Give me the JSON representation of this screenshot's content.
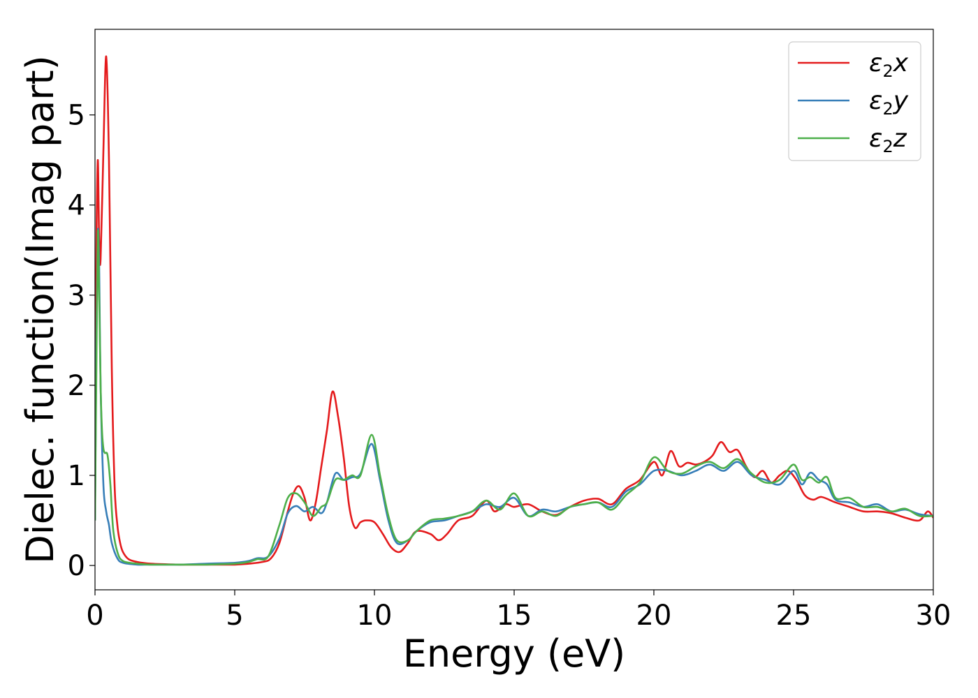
{
  "chart_data": {
    "type": "line",
    "title": "",
    "xlabel": "Energy (eV)",
    "ylabel": "Dielec. function(Imag part)",
    "xlim": [
      0,
      30
    ],
    "ylim": [
      -0.27,
      5.95
    ],
    "xticks": [
      0,
      5,
      10,
      15,
      20,
      25,
      30
    ],
    "yticks": [
      0,
      1,
      2,
      3,
      4,
      5
    ],
    "grid": false,
    "legend_position": "top-right",
    "series": [
      {
        "name": "ε2x",
        "legend_main": "ε",
        "legend_sub": "2",
        "legend_suffix": "x",
        "color": "#e41a1c",
        "x": [
          0,
          0.05,
          0.1,
          0.15,
          0.2,
          0.3,
          0.4,
          0.5,
          0.6,
          0.7,
          0.8,
          0.9,
          1.0,
          1.2,
          1.5,
          2,
          3,
          4,
          5,
          5.5,
          6,
          6.3,
          6.6,
          6.9,
          7.1,
          7.3,
          7.5,
          7.7,
          7.9,
          8.1,
          8.3,
          8.5,
          8.7,
          8.9,
          9.1,
          9.3,
          9.5,
          9.7,
          10.0,
          10.3,
          10.6,
          10.9,
          11.2,
          11.5,
          12.0,
          12.3,
          12.6,
          13.0,
          13.5,
          14.0,
          14.3,
          14.7,
          15.0,
          15.5,
          16.0,
          16.5,
          17.0,
          17.5,
          18.0,
          18.5,
          19.0,
          19.5,
          20.0,
          20.3,
          20.6,
          20.9,
          21.2,
          21.5,
          21.8,
          22.1,
          22.4,
          22.7,
          23.0,
          23.3,
          23.6,
          23.9,
          24.2,
          24.5,
          24.8,
          25.1,
          25.4,
          25.7,
          26.0,
          26.5,
          27.0,
          27.5,
          28.0,
          28.5,
          29.0,
          29.5,
          29.8,
          30.0
        ],
        "y": [
          1.0,
          3.5,
          4.5,
          3.6,
          3.4,
          4.6,
          5.65,
          4.5,
          2.2,
          0.9,
          0.45,
          0.25,
          0.15,
          0.07,
          0.04,
          0.02,
          0.01,
          0.01,
          0.01,
          0.02,
          0.04,
          0.08,
          0.25,
          0.6,
          0.8,
          0.88,
          0.75,
          0.5,
          0.7,
          1.1,
          1.5,
          1.93,
          1.65,
          1.2,
          0.65,
          0.42,
          0.48,
          0.5,
          0.48,
          0.35,
          0.2,
          0.15,
          0.25,
          0.38,
          0.35,
          0.28,
          0.35,
          0.5,
          0.55,
          0.72,
          0.6,
          0.68,
          0.65,
          0.68,
          0.6,
          0.56,
          0.65,
          0.72,
          0.74,
          0.68,
          0.85,
          0.95,
          1.15,
          1.0,
          1.27,
          1.1,
          1.14,
          1.12,
          1.15,
          1.22,
          1.37,
          1.26,
          1.28,
          1.1,
          0.98,
          1.05,
          0.92,
          1.0,
          1.05,
          0.95,
          0.78,
          0.73,
          0.76,
          0.7,
          0.65,
          0.6,
          0.6,
          0.58,
          0.53,
          0.5,
          0.6,
          0.53
        ]
      },
      {
        "name": "ε2y",
        "legend_main": "ε",
        "legend_sub": "2",
        "legend_suffix": "y",
        "color": "#377eb8",
        "x": [
          0,
          0.05,
          0.1,
          0.15,
          0.2,
          0.3,
          0.4,
          0.5,
          0.6,
          0.8,
          1.0,
          1.5,
          2,
          3,
          4,
          5,
          5.5,
          5.8,
          6.2,
          6.6,
          6.9,
          7.2,
          7.5,
          7.8,
          8.1,
          8.3,
          8.6,
          8.9,
          9.2,
          9.5,
          9.9,
          10.2,
          10.5,
          10.8,
          11.2,
          11.5,
          12.0,
          12.5,
          13.0,
          13.5,
          14.0,
          14.5,
          15.0,
          15.5,
          16.0,
          16.5,
          17.0,
          17.5,
          18.0,
          18.5,
          19.0,
          19.5,
          20.0,
          20.5,
          21.0,
          21.5,
          22.0,
          22.5,
          23.0,
          23.5,
          24.0,
          24.5,
          25.0,
          25.3,
          25.6,
          25.9,
          26.2,
          26.5,
          27.0,
          27.5,
          28.0,
          28.5,
          29.0,
          29.5,
          30.0
        ],
        "y": [
          0.5,
          2.5,
          3.7,
          3.3,
          2.0,
          0.9,
          0.6,
          0.45,
          0.25,
          0.08,
          0.03,
          0.01,
          0.01,
          0.01,
          0.02,
          0.03,
          0.05,
          0.08,
          0.1,
          0.3,
          0.58,
          0.66,
          0.6,
          0.65,
          0.58,
          0.7,
          1.02,
          0.95,
          0.98,
          1.02,
          1.35,
          0.95,
          0.5,
          0.25,
          0.28,
          0.38,
          0.48,
          0.5,
          0.55,
          0.6,
          0.68,
          0.65,
          0.75,
          0.55,
          0.62,
          0.6,
          0.65,
          0.68,
          0.7,
          0.65,
          0.82,
          0.9,
          1.05,
          1.05,
          1.0,
          1.05,
          1.12,
          1.05,
          1.15,
          1.0,
          0.95,
          0.9,
          1.05,
          0.9,
          1.03,
          0.95,
          0.9,
          0.73,
          0.7,
          0.65,
          0.68,
          0.6,
          0.62,
          0.57,
          0.55
        ]
      },
      {
        "name": "ε2z",
        "legend_main": "ε",
        "legend_sub": "2",
        "legend_suffix": "z",
        "color": "#4daf4a",
        "x": [
          0,
          0.05,
          0.1,
          0.15,
          0.2,
          0.25,
          0.3,
          0.35,
          0.45,
          0.55,
          0.65,
          0.8,
          1.0,
          1.5,
          2,
          3,
          4,
          5,
          5.5,
          5.8,
          6.2,
          6.6,
          6.9,
          7.2,
          7.5,
          7.8,
          8.1,
          8.3,
          8.6,
          8.9,
          9.2,
          9.5,
          9.9,
          10.2,
          10.5,
          10.8,
          11.2,
          11.5,
          12.0,
          12.5,
          13.0,
          13.5,
          14.0,
          14.5,
          15.0,
          15.5,
          16.0,
          16.5,
          17.0,
          17.5,
          18.0,
          18.5,
          19.0,
          19.5,
          20.0,
          20.5,
          21.0,
          21.5,
          22.0,
          22.5,
          23.0,
          23.5,
          24.0,
          24.5,
          25.0,
          25.3,
          25.6,
          25.9,
          26.2,
          26.5,
          27.0,
          27.5,
          28.0,
          28.5,
          29.0,
          29.5,
          30.0
        ],
        "y": [
          0.5,
          2.2,
          3.7,
          3.0,
          2.0,
          1.5,
          1.3,
          1.25,
          1.22,
          0.9,
          0.4,
          0.15,
          0.05,
          0.02,
          0.01,
          0.01,
          0.01,
          0.02,
          0.04,
          0.07,
          0.1,
          0.45,
          0.75,
          0.8,
          0.7,
          0.55,
          0.65,
          0.7,
          0.95,
          0.95,
          1.0,
          1.0,
          1.45,
          1.0,
          0.55,
          0.28,
          0.28,
          0.38,
          0.5,
          0.52,
          0.55,
          0.6,
          0.72,
          0.62,
          0.8,
          0.55,
          0.6,
          0.55,
          0.65,
          0.68,
          0.7,
          0.62,
          0.78,
          0.92,
          1.2,
          1.05,
          1.02,
          1.1,
          1.15,
          1.08,
          1.18,
          1.02,
          0.92,
          0.95,
          1.12,
          0.95,
          0.98,
          0.92,
          0.98,
          0.75,
          0.75,
          0.65,
          0.65,
          0.6,
          0.63,
          0.55,
          0.55
        ]
      }
    ]
  }
}
